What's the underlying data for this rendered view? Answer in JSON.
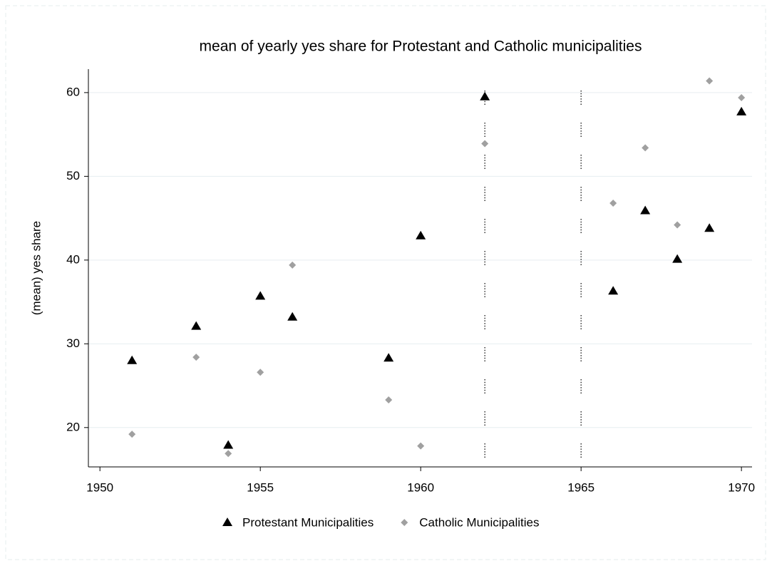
{
  "chart_data": {
    "type": "scatter",
    "title": "mean of yearly yes share for Protestant and Catholic municipalities",
    "y_label": "(mean) yes share",
    "x": [
      1951,
      1953,
      1954,
      1955,
      1956,
      1959,
      1960,
      1962,
      1966,
      1967,
      1968,
      1969,
      1970
    ],
    "series": [
      {
        "name": "Protestant Municipalities",
        "color": "#000000",
        "marker": "triangle",
        "values": [
          28.0,
          32.1,
          17.9,
          35.7,
          33.2,
          28.3,
          42.9,
          59.5,
          36.3,
          45.9,
          40.1,
          43.8,
          57.7
        ]
      },
      {
        "name": "Catholic Municipalities",
        "color": "#a0a0a0",
        "marker": "diamond",
        "values": [
          19.2,
          28.4,
          16.9,
          26.6,
          39.4,
          23.3,
          17.8,
          53.9,
          46.8,
          53.4,
          44.2,
          61.4,
          59.4
        ]
      }
    ],
    "xlines": [
      1962,
      1965
    ],
    "xlim": [
      1949.64,
      1970.33
    ],
    "xticks": [
      1950,
      1955,
      1960,
      1965,
      1970
    ],
    "ylim": [
      15.3,
      62.8
    ],
    "yticks": [
      20,
      30,
      40,
      50,
      60
    ],
    "grid": true,
    "legend": "bottom"
  }
}
